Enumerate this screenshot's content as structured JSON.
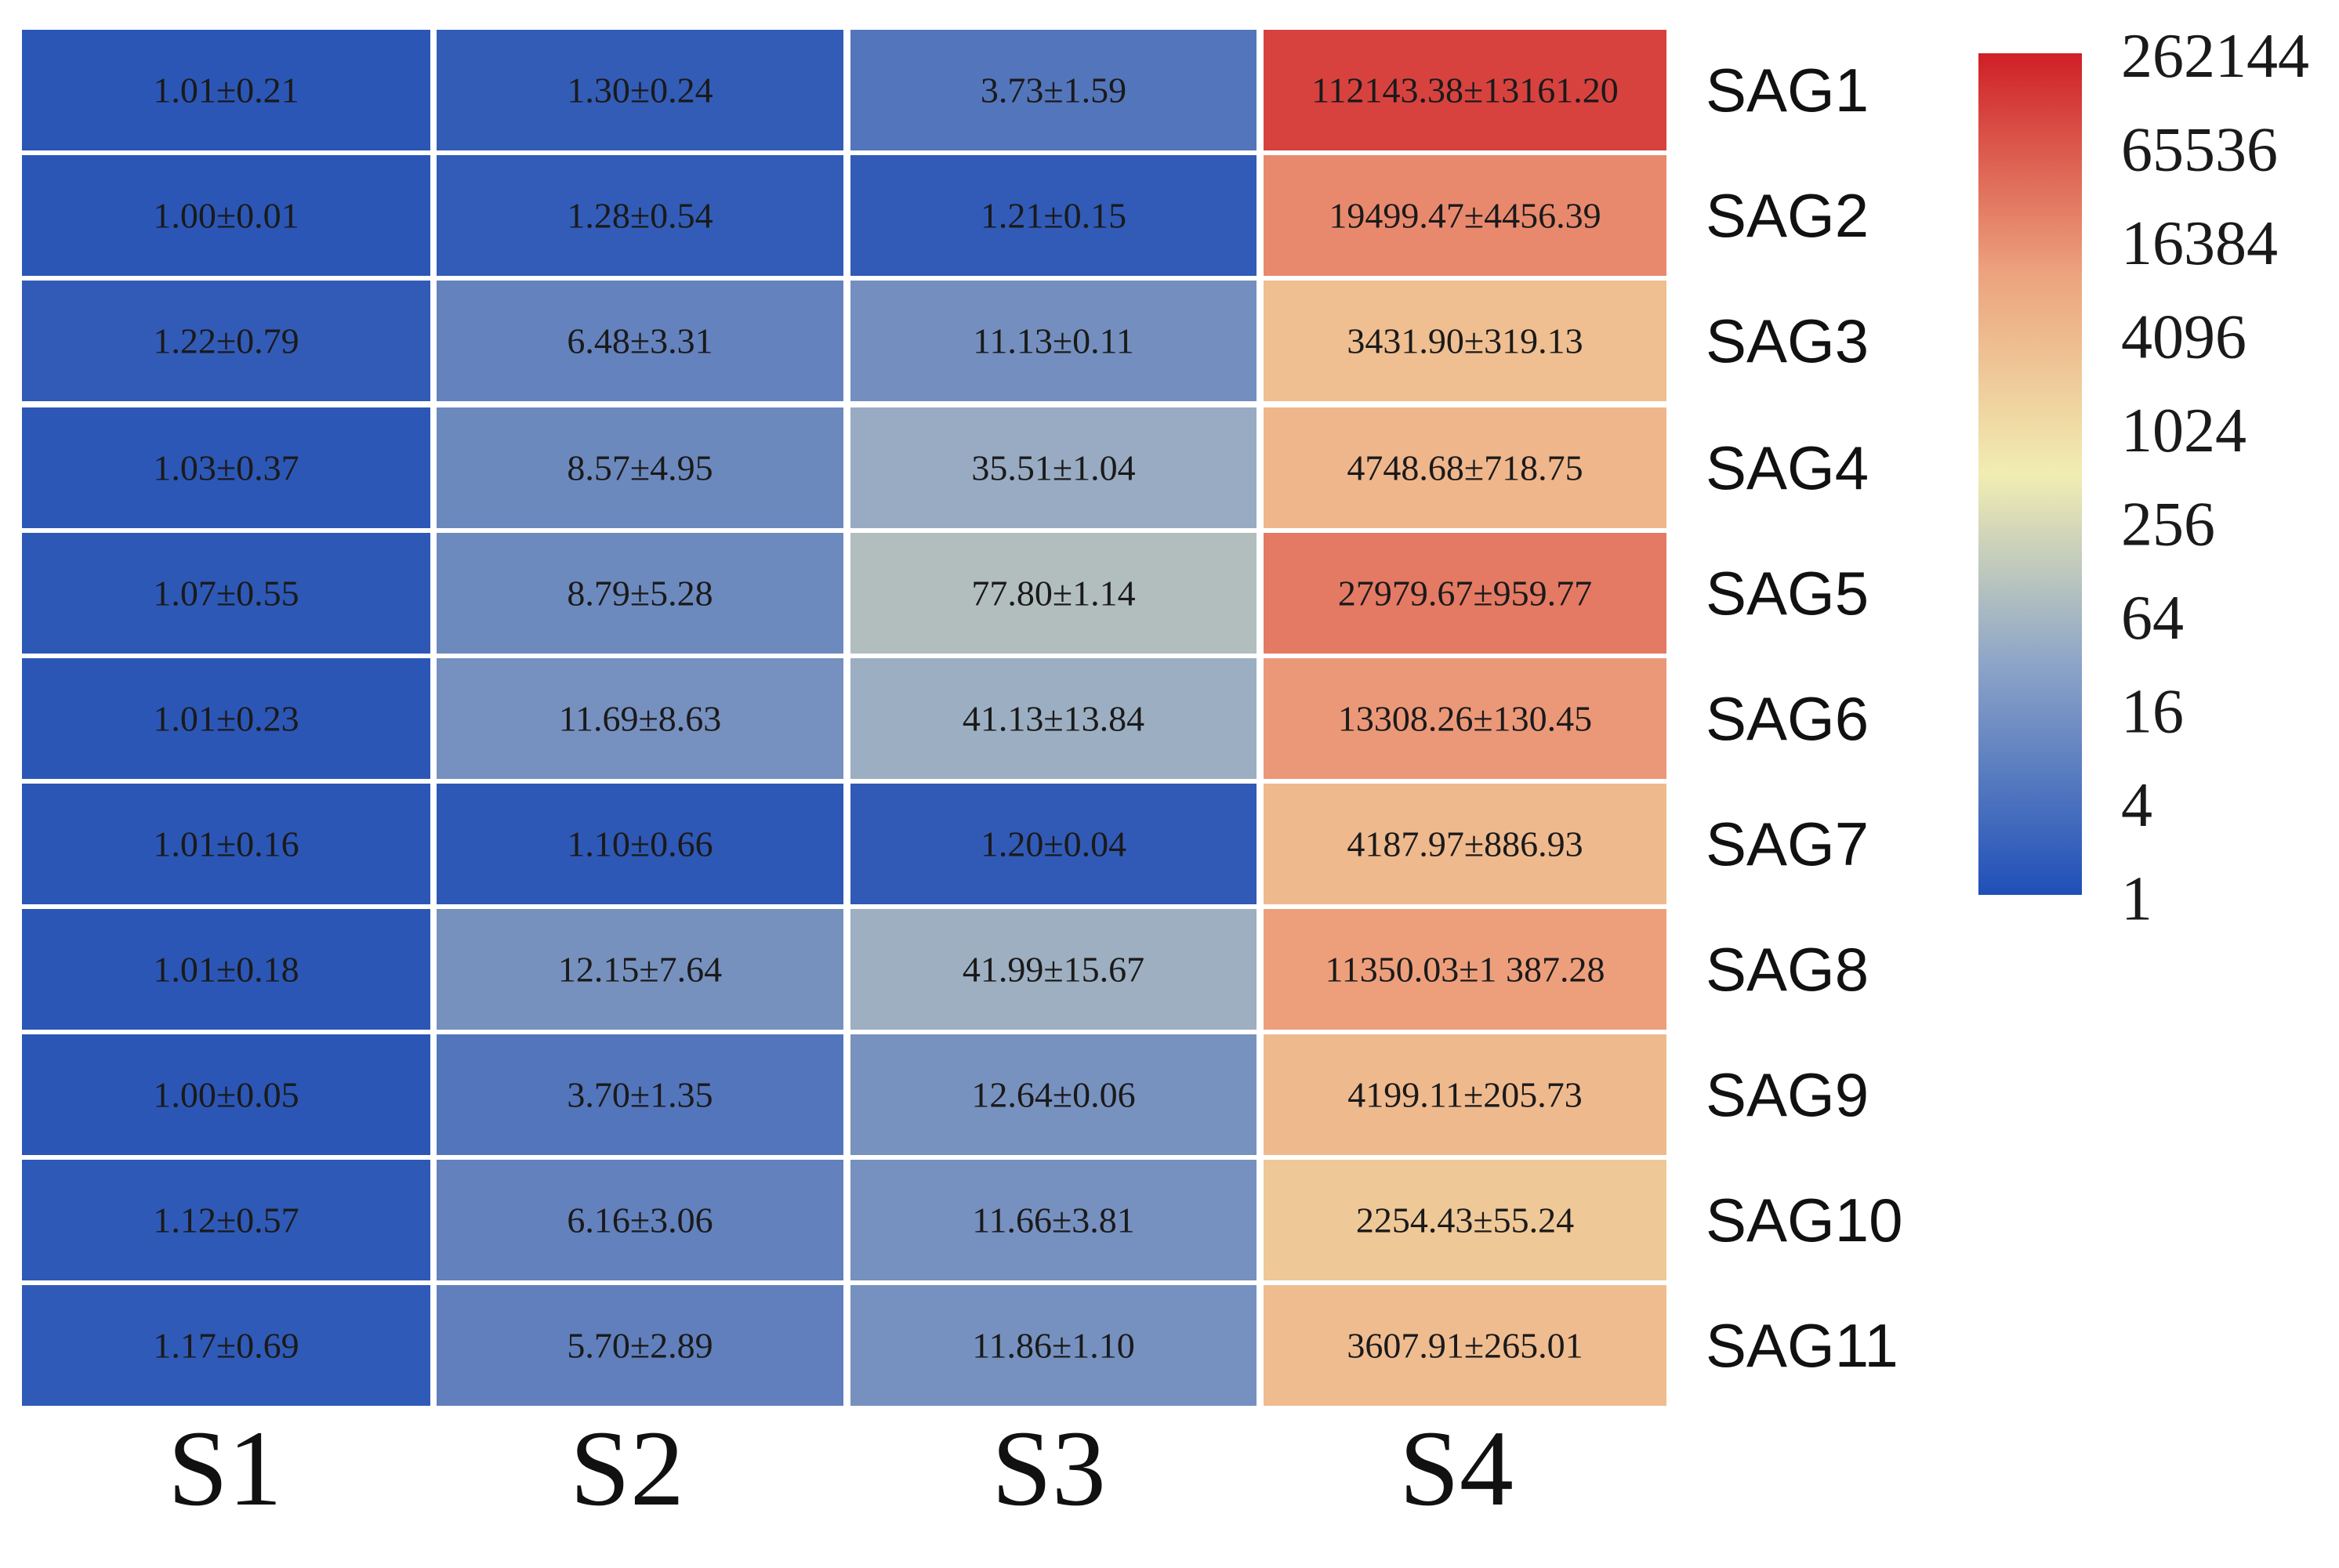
{
  "chart_data": {
    "type": "heatmap",
    "title": "",
    "xlabel": "",
    "ylabel": "",
    "columns": [
      "S1",
      "S2",
      "S3",
      "S4"
    ],
    "rows": [
      "SAG1",
      "SAG2",
      "SAG3",
      "SAG4",
      "SAG5",
      "SAG6",
      "SAG7",
      "SAG8",
      "SAG9",
      "SAG10",
      "SAG11"
    ],
    "values": [
      [
        1.01,
        1.3,
        3.73,
        112143.38
      ],
      [
        1.0,
        1.28,
        1.21,
        19499.47
      ],
      [
        1.22,
        6.48,
        11.13,
        3431.9
      ],
      [
        1.03,
        8.57,
        35.51,
        4748.68
      ],
      [
        1.07,
        8.79,
        77.8,
        27979.67
      ],
      [
        1.01,
        11.69,
        41.13,
        13308.26
      ],
      [
        1.01,
        1.1,
        1.2,
        4187.97
      ],
      [
        1.01,
        12.15,
        41.99,
        11350.03
      ],
      [
        1.0,
        3.7,
        12.64,
        4199.11
      ],
      [
        1.12,
        6.16,
        11.66,
        2254.43
      ],
      [
        1.17,
        5.7,
        11.86,
        3607.91
      ]
    ],
    "errors": [
      [
        0.21,
        0.24,
        1.59,
        13161.2
      ],
      [
        0.01,
        0.54,
        0.15,
        4456.39
      ],
      [
        0.79,
        3.31,
        0.11,
        319.13
      ],
      [
        0.37,
        4.95,
        1.04,
        718.75
      ],
      [
        0.55,
        5.28,
        1.14,
        959.77
      ],
      [
        0.23,
        8.63,
        13.84,
        130.45
      ],
      [
        0.16,
        0.66,
        0.04,
        886.93
      ],
      [
        0.18,
        7.64,
        15.67,
        1387.28
      ],
      [
        0.05,
        1.35,
        0.06,
        205.73
      ],
      [
        0.57,
        3.06,
        3.81,
        55.24
      ],
      [
        0.69,
        2.89,
        1.1,
        265.01
      ]
    ],
    "cell_labels": [
      [
        "1.01±0.21",
        "1.30±0.24",
        "3.73±1.59",
        "112143.38±13161.20"
      ],
      [
        "1.00±0.01",
        "1.28±0.54",
        "1.21±0.15",
        "19499.47±4456.39"
      ],
      [
        "1.22±0.79",
        "6.48±3.31",
        "11.13±0.11",
        "3431.90±319.13"
      ],
      [
        "1.03±0.37",
        "8.57±4.95",
        "35.51±1.04",
        "4748.68±718.75"
      ],
      [
        "1.07±0.55",
        "8.79±5.28",
        "77.80±1.14",
        "27979.67±959.77"
      ],
      [
        "1.01±0.23",
        "11.69±8.63",
        "41.13±13.84",
        "13308.26±130.45"
      ],
      [
        "1.01±0.16",
        "1.10±0.66",
        "1.20±0.04",
        "4187.97±886.93"
      ],
      [
        "1.01±0.18",
        "12.15±7.64",
        "41.99±15.67",
        "11350.03±1 387.28"
      ],
      [
        "1.00±0.05",
        "3.70±1.35",
        "12.64±0.06",
        "4199.11±205.73"
      ],
      [
        "1.12±0.57",
        "6.16±3.06",
        "11.66±3.81",
        "2254.43±55.24"
      ],
      [
        "1.17±0.69",
        "5.70±2.89",
        "11.86±1.10",
        "3607.91±265.01"
      ]
    ],
    "color_scale": {
      "type": "log2",
      "min": 1,
      "max": 262144,
      "ticks": [
        262144,
        65536,
        16384,
        4096,
        1024,
        256,
        64,
        16,
        4,
        1
      ],
      "colors": [
        "#2b56b6",
        "#95a9c3",
        "#f0ecb0",
        "#eea37f",
        "#cf2028"
      ]
    },
    "legend_position": "right",
    "grid": false
  }
}
